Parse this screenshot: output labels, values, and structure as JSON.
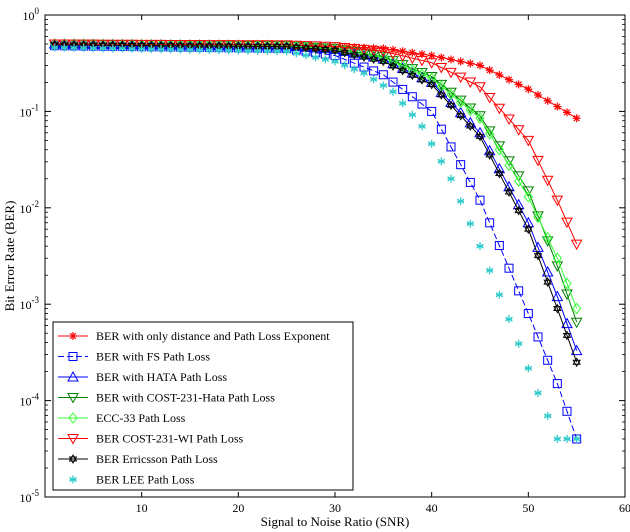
{
  "chart_data": {
    "type": "line",
    "title": "",
    "xlabel": "Signal to Noise Ratio (SNR)",
    "ylabel": "Bit Error Rate (BER)",
    "xlim": [
      0,
      60
    ],
    "ylim": [
      1e-05,
      1
    ],
    "y_scale": "log",
    "x_ticks": [
      10,
      20,
      30,
      40,
      50,
      60
    ],
    "x_tick_labels": [
      "10",
      "20",
      "30",
      "40",
      "50",
      "60"
    ],
    "y_ticks": [
      1e-05,
      0.0001,
      0.001,
      0.01,
      0.1,
      1
    ],
    "y_tick_labels": [
      {
        "base": "10",
        "exp": "-5"
      },
      {
        "base": "10",
        "exp": "-4"
      },
      {
        "base": "10",
        "exp": "-3"
      },
      {
        "base": "10",
        "exp": "-2"
      },
      {
        "base": "10",
        "exp": "-1"
      },
      {
        "base": "10",
        "exp": "0"
      }
    ],
    "grid": false,
    "legend_position": "bottom-left",
    "series": [
      {
        "name": "BER with only distance and Path Loss Exponent",
        "color": "#ff0000",
        "marker": "star",
        "dash": "solid",
        "x": [
          1,
          30,
          35,
          40,
          45,
          50,
          55
        ],
        "y": [
          0.5,
          0.47,
          0.45,
          0.38,
          0.3,
          0.17,
          0.085
        ]
      },
      {
        "name": "BER with FS Path Loss",
        "color": "#0000ff",
        "marker": "square",
        "dash": "dashed",
        "x": [
          1,
          25,
          30,
          35,
          40,
          45,
          50,
          53,
          55
        ],
        "y": [
          0.48,
          0.45,
          0.38,
          0.24,
          0.1,
          0.012,
          0.0008,
          0.00015,
          4e-05
        ]
      },
      {
        "name": "BER with HATA Path Loss",
        "color": "#0000ff",
        "marker": "triangle-up",
        "dash": "solid",
        "x": [
          1,
          25,
          30,
          35,
          40,
          45,
          50,
          53,
          55
        ],
        "y": [
          0.5,
          0.48,
          0.44,
          0.35,
          0.2,
          0.06,
          0.007,
          0.0012,
          0.00033
        ]
      },
      {
        "name": "BER with COST-231-Hata Path Loss",
        "color": "#008000",
        "marker": "triangle-down",
        "dash": "solid",
        "x": [
          1,
          25,
          30,
          35,
          40,
          45,
          50,
          53,
          55
        ],
        "y": [
          0.5,
          0.48,
          0.45,
          0.37,
          0.23,
          0.09,
          0.015,
          0.0025,
          0.00065
        ]
      },
      {
        "name": "ECC-33 Path Loss",
        "color": "#33ff33",
        "marker": "diamond",
        "dash": "solid",
        "x": [
          1,
          25,
          30,
          35,
          40,
          45,
          50,
          53,
          55
        ],
        "y": [
          0.5,
          0.48,
          0.44,
          0.36,
          0.22,
          0.085,
          0.013,
          0.003,
          0.0009
        ]
      },
      {
        "name": "BER COST-231-WI Path Loss",
        "color": "#ff0000",
        "marker": "triangle-down",
        "dash": "solid",
        "x": [
          1,
          25,
          30,
          35,
          40,
          45,
          50,
          53,
          55
        ],
        "y": [
          0.5,
          0.49,
          0.47,
          0.42,
          0.32,
          0.18,
          0.05,
          0.012,
          0.0042
        ]
      },
      {
        "name": "BER Erricsson Path Loss",
        "color": "#000000",
        "marker": "hexagram",
        "dash": "solid",
        "x": [
          1,
          25,
          30,
          35,
          40,
          45,
          50,
          53,
          55
        ],
        "y": [
          0.49,
          0.47,
          0.43,
          0.33,
          0.19,
          0.055,
          0.006,
          0.0009,
          0.00025
        ]
      },
      {
        "name": "BER LEE Path Loss",
        "color": "#33cccc",
        "marker": "asterisk",
        "dash": "none",
        "x": [
          1,
          25,
          30,
          33,
          36,
          39,
          42,
          45,
          48,
          51,
          53,
          55
        ],
        "y": [
          0.46,
          0.42,
          0.33,
          0.25,
          0.16,
          0.07,
          0.02,
          0.004,
          0.0007,
          0.00012,
          4e-05,
          4e-05
        ]
      }
    ]
  }
}
